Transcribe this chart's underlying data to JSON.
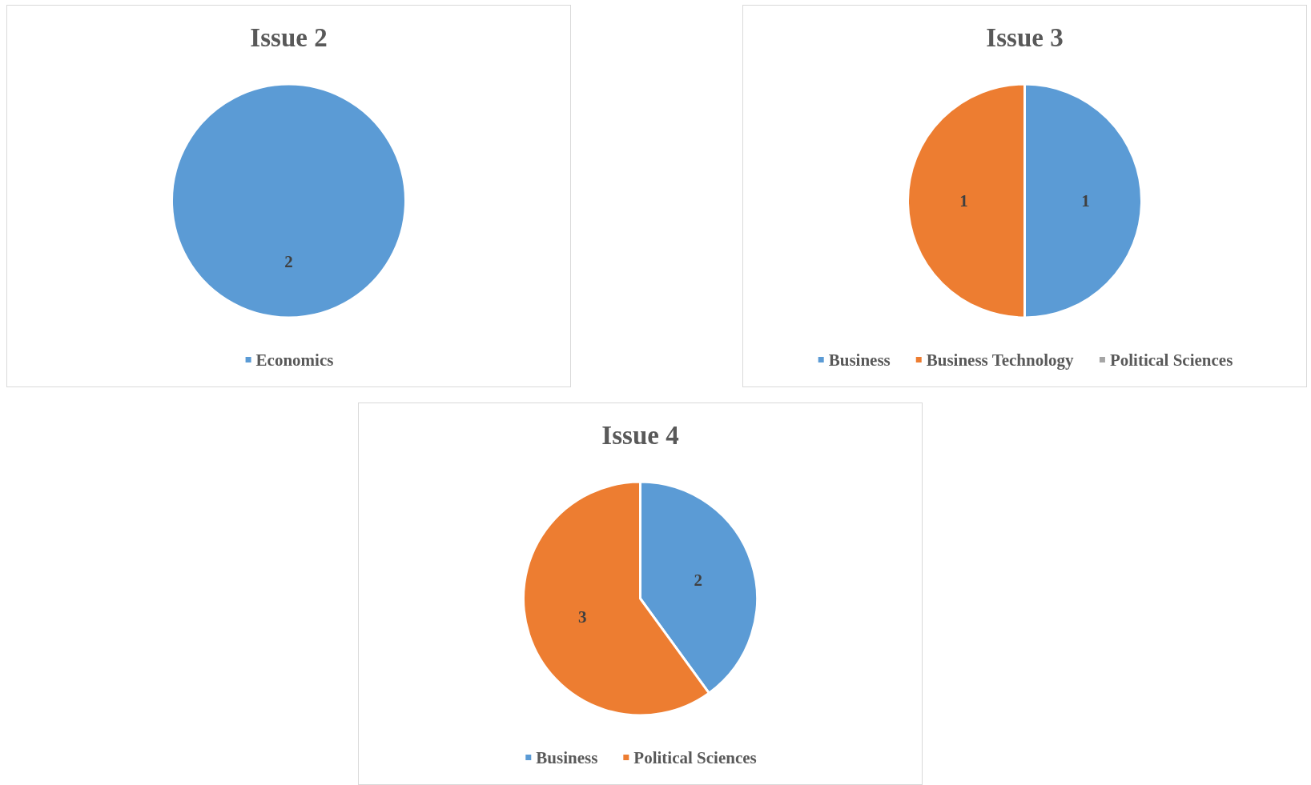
{
  "chart_data": [
    {
      "type": "pie",
      "title": "Issue 2",
      "categories": [
        "Economics"
      ],
      "values": [
        2
      ],
      "colors": [
        "#5b9bd5"
      ],
      "legend": "bottom",
      "data_labels": true
    },
    {
      "type": "pie",
      "title": "Issue 3",
      "categories": [
        "Business",
        "Business Technology",
        "Political Sciences"
      ],
      "values": [
        1,
        1,
        0
      ],
      "colors": [
        "#5b9bd5",
        "#ed7d31",
        "#a5a5a5"
      ],
      "legend": "bottom",
      "value_labels": [
        "1",
        "1",
        null
      ]
    },
    {
      "type": "pie",
      "title": "Issue 4",
      "categories": [
        "Business",
        "Political Sciences"
      ],
      "values": [
        2,
        3
      ],
      "colors": [
        "#5b9bd5",
        "#ed7d31"
      ],
      "legend": "bottom",
      "data_labels": true
    }
  ]
}
